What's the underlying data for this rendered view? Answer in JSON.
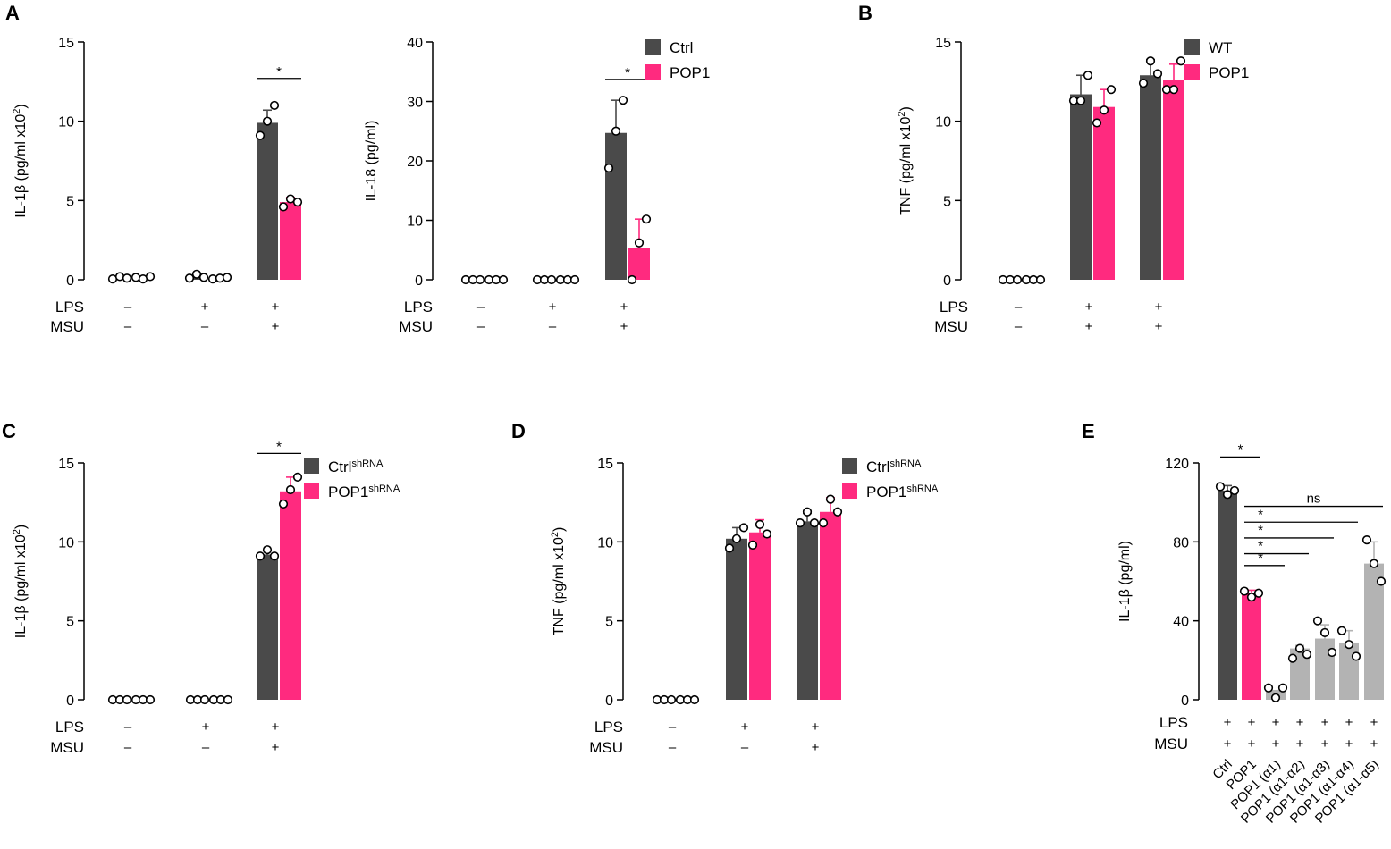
{
  "colors": {
    "dark": "#4a4a4a",
    "pink": "#ff2a7f",
    "gray": "#b3b3b3"
  },
  "chart_data": [
    {
      "id": "A1",
      "panel_label": "A",
      "type": "bar",
      "ylabel": "IL-1β (pg/ml x10",
      "ylabel_sup": "2",
      "ylabel_end": ")",
      "ylim": [
        0,
        15
      ],
      "yticks": [
        "0",
        "5",
        "10",
        "15"
      ],
      "condition_rows": [
        {
          "label": "LPS",
          "values": [
            "–",
            "+",
            "+"
          ]
        },
        {
          "label": "MSU",
          "values": [
            "–",
            "–",
            "+"
          ]
        }
      ],
      "series": [
        {
          "name": "Ctrl",
          "color": "dark",
          "values": [
            0.1,
            0.2,
            9.9
          ],
          "errors": [
            0,
            0,
            0.8
          ],
          "points": [
            [
              0.05,
              0.2,
              0.1
            ],
            [
              0.1,
              0.35,
              0.15
            ],
            [
              9.1,
              10,
              11
            ]
          ]
        },
        {
          "name": "POP1",
          "color": "pink",
          "values": [
            0.1,
            0.1,
            4.9
          ],
          "errors": [
            0,
            0,
            0.3
          ],
          "points": [
            [
              0.15,
              0.05,
              0.2
            ],
            [
              0.05,
              0.1,
              0.15
            ],
            [
              4.6,
              5.1,
              4.9
            ]
          ]
        }
      ],
      "significance": [
        {
          "label": "*",
          "from": [
            2,
            0
          ],
          "to": [
            2,
            1
          ],
          "y": 12.7
        }
      ],
      "legend": null
    },
    {
      "id": "A2",
      "panel_label": null,
      "type": "bar",
      "ylabel": "IL-18 (pg/ml)",
      "ylabel_sup": "",
      "ylabel_end": "",
      "ylim": [
        0,
        40
      ],
      "yticks": [
        "0",
        "10",
        "20",
        "30",
        "40"
      ],
      "condition_rows": [
        {
          "label": "LPS",
          "values": [
            "–",
            "+",
            "+"
          ]
        },
        {
          "label": "MSU",
          "values": [
            "–",
            "–",
            "+"
          ]
        }
      ],
      "series": [
        {
          "name": "Ctrl",
          "color": "dark",
          "values": [
            0,
            0,
            24.7
          ],
          "errors": [
            0,
            0,
            5.5
          ],
          "points": [
            [
              0,
              0,
              0
            ],
            [
              0,
              0,
              0
            ],
            [
              18.8,
              25,
              30.2
            ]
          ]
        },
        {
          "name": "POP1",
          "color": "pink",
          "values": [
            0,
            0,
            5.3
          ],
          "errors": [
            0,
            0,
            4.9
          ],
          "points": [
            [
              0,
              0,
              0
            ],
            [
              0,
              0,
              0
            ],
            [
              0,
              6.2,
              10.2
            ]
          ]
        }
      ],
      "significance": [
        {
          "label": "*",
          "from": [
            2,
            0
          ],
          "to": [
            2,
            1
          ],
          "y": 33.7
        }
      ],
      "legend": {
        "items": [
          {
            "name": "Ctrl",
            "color": "dark"
          },
          {
            "name": "POP1",
            "color": "pink"
          }
        ]
      }
    },
    {
      "id": "B",
      "panel_label": "B",
      "type": "bar",
      "ylabel": "TNF (pg/ml x10",
      "ylabel_sup": "2",
      "ylabel_end": ")",
      "ylim": [
        0,
        15
      ],
      "yticks": [
        "0",
        "5",
        "10",
        "15"
      ],
      "condition_rows": [
        {
          "label": "LPS",
          "values": [
            "–",
            "+",
            "+"
          ]
        },
        {
          "label": "MSU",
          "values": [
            "–",
            "+",
            "+"
          ],
          "_note": "ignored"
        }
      ],
      "series": [
        {
          "name": "WT",
          "color": "dark",
          "values": [
            0,
            11.7,
            12.9
          ],
          "errors": [
            0,
            1.2,
            1.0
          ],
          "points": [
            [
              0,
              0,
              0
            ],
            [
              11.3,
              11.3,
              12.9
            ],
            [
              12.4,
              13.8,
              13.0
            ]
          ]
        },
        {
          "name": "POP1",
          "color": "pink",
          "values": [
            0,
            10.9,
            12.6
          ],
          "errors": [
            0,
            1.1,
            1.0
          ],
          "points": [
            [
              0,
              0,
              0
            ],
            [
              9.9,
              10.7,
              12.0
            ],
            [
              12.0,
              12.0,
              13.8
            ]
          ]
        }
      ],
      "significance": [],
      "legend": {
        "items": [
          {
            "name": "WT",
            "color": "dark"
          },
          {
            "name": "POP1",
            "color": "pink"
          }
        ]
      }
    },
    {
      "id": "C",
      "panel_label": "C",
      "type": "bar",
      "ylabel": "IL-1β (pg/ml x10",
      "ylabel_sup": "2",
      "ylabel_end": ")",
      "ylim": [
        0,
        15
      ],
      "yticks": [
        "0",
        "5",
        "10",
        "15"
      ],
      "condition_rows": [
        {
          "label": "LPS",
          "values": [
            "–",
            "+",
            "+"
          ]
        },
        {
          "label": "MSU",
          "values": [
            "–",
            "–",
            "+"
          ]
        }
      ],
      "series": [
        {
          "name": "Ctrl",
          "name_sup": "shRNA",
          "color": "dark",
          "values": [
            0,
            0,
            9.2
          ],
          "errors": [
            0,
            0,
            0.3
          ],
          "points": [
            [
              0,
              0,
              0
            ],
            [
              0,
              0,
              0
            ],
            [
              9.1,
              9.5,
              9.1
            ]
          ]
        },
        {
          "name": "POP1",
          "name_sup": "shRNA",
          "color": "pink",
          "values": [
            0,
            0,
            13.2
          ],
          "errors": [
            0,
            0,
            0.9
          ],
          "points": [
            [
              0,
              0,
              0
            ],
            [
              0,
              0,
              0
            ],
            [
              12.4,
              13.3,
              14.1
            ]
          ]
        }
      ],
      "significance": [
        {
          "label": "*",
          "from": [
            2,
            0
          ],
          "to": [
            2,
            1
          ],
          "y": 15.6
        }
      ],
      "legend": {
        "items": [
          {
            "name": "Ctrl",
            "sup": "shRNA",
            "color": "dark"
          },
          {
            "name": "POP1",
            "sup": "shRNA",
            "color": "pink"
          }
        ]
      }
    },
    {
      "id": "D",
      "panel_label": "D",
      "type": "bar",
      "ylabel": "TNF (pg/ml x10",
      "ylabel_sup": "2",
      "ylabel_end": ")",
      "ylim": [
        0,
        15
      ],
      "yticks": [
        "0",
        "5",
        "10",
        "15"
      ],
      "condition_rows": [
        {
          "label": "LPS",
          "values": [
            "–",
            "+",
            "+"
          ]
        },
        {
          "label": "MSU",
          "values": [
            "–",
            "–",
            "+"
          ]
        }
      ],
      "series": [
        {
          "name": "Ctrl",
          "name_sup": "shRNA",
          "color": "dark",
          "values": [
            0,
            10.2,
            11.3
          ],
          "errors": [
            0,
            0.7,
            0.5
          ],
          "points": [
            [
              0,
              0,
              0
            ],
            [
              9.6,
              10.2,
              10.9
            ],
            [
              11.2,
              11.9,
              11.2
            ]
          ]
        },
        {
          "name": "POP1",
          "name_sup": "shRNA",
          "color": "pink",
          "values": [
            0,
            10.6,
            11.9
          ],
          "errors": [
            0,
            0.8,
            0.9
          ],
          "points": [
            [
              0,
              0,
              0
            ],
            [
              9.8,
              11.1,
              10.5
            ],
            [
              11.2,
              12.7,
              11.9
            ]
          ]
        }
      ],
      "significance": [],
      "legend": {
        "items": [
          {
            "name": "Ctrl",
            "sup": "shRNA",
            "color": "dark"
          },
          {
            "name": "POP1",
            "sup": "shRNA",
            "color": "pink"
          }
        ]
      }
    },
    {
      "id": "E",
      "panel_label": "E",
      "type": "bar",
      "ylabel": "IL-1β (pg/ml)",
      "ylabel_sup": "",
      "ylabel_end": "",
      "ylim": [
        0,
        120
      ],
      "yticks": [
        "0",
        "40",
        "80",
        "120"
      ],
      "categories": [
        "Ctrl",
        "POP1",
        "POP1 (α1)",
        "POP1 (α1-α2)",
        "POP1 (α1-α3)",
        "POP1 (α1-α4)",
        "POP1 (α1-α5)"
      ],
      "condition_rows": [
        {
          "label": "LPS",
          "values": [
            "+",
            "+",
            "+",
            "+",
            "+",
            "+",
            "+"
          ]
        },
        {
          "label": "MSU",
          "values": [
            "+",
            "+",
            "+",
            "+",
            "+",
            "+",
            "+"
          ]
        }
      ],
      "values": [
        106,
        54,
        5,
        26,
        31,
        29,
        69
      ],
      "errors": [
        2.5,
        1.5,
        0,
        1.5,
        7,
        6,
        11
      ],
      "bar_colors": [
        "dark",
        "pink",
        "gray",
        "gray",
        "gray",
        "gray",
        "gray"
      ],
      "points": [
        [
          108,
          104,
          106
        ],
        [
          55,
          52,
          54
        ],
        [
          6,
          1,
          6
        ],
        [
          21,
          26,
          23
        ],
        [
          40,
          34,
          24
        ],
        [
          35,
          28,
          22
        ],
        [
          81,
          69,
          60
        ]
      ],
      "significance": [
        {
          "label": "*",
          "from": 0,
          "to": 1,
          "y": 123
        },
        {
          "label": "*",
          "from": 1,
          "to": 2,
          "y": 68
        },
        {
          "label": "*",
          "from": 1,
          "to": 3,
          "y": 74
        },
        {
          "label": "*",
          "from": 1,
          "to": 4,
          "y": 82
        },
        {
          "label": "*",
          "from": 1,
          "to": 5,
          "y": 90
        },
        {
          "label": "ns",
          "from": 1,
          "to": 6,
          "y": 98
        }
      ],
      "legend": null
    }
  ]
}
